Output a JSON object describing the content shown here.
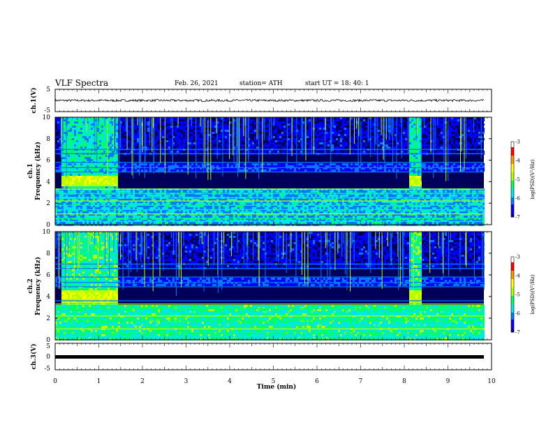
{
  "header": {
    "title": "VLF Spectra",
    "date": "Feb. 26, 2021",
    "station": "station= ATH",
    "start": "start  UT  =   18: 40: 1"
  },
  "colors": {
    "background": "#ffffff",
    "trace": "#000000",
    "colormap": [
      "#000033",
      "#00007a",
      "#0000ff",
      "#0078ff",
      "#00e6e6",
      "#00ff64",
      "#b4ff00",
      "#ffff00",
      "#ff9600",
      "#ff0000",
      "#ffffff"
    ]
  },
  "chart_data": [
    {
      "type": "line",
      "panel": "ch1-voltage",
      "ylabel": "ch.1(V)",
      "ylim": [
        -5,
        5
      ],
      "yticks": [
        "5",
        "-5"
      ],
      "xlim": [
        0,
        10
      ],
      "baseline": 0,
      "description_values": {
        "level": 0,
        "noise_amplitude": 0.5
      }
    },
    {
      "type": "heatmap",
      "panel": "ch1-spectrogram",
      "ylabel": "Frequency (kHz)",
      "channel_label": "ch.1",
      "ylim": [
        0,
        10
      ],
      "yticks": [
        "0",
        "2",
        "4",
        "6",
        "8",
        "10"
      ],
      "xlim": [
        0,
        10
      ],
      "colorbar": {
        "label": "log(PSD)(V²/Hz)",
        "range": [
          -7,
          -3
        ],
        "ticks": [
          "-3",
          "-4",
          "-5",
          "-6",
          "-7"
        ]
      },
      "active_segments": [
        [
          0.15,
          1.42
        ],
        [
          8.1,
          8.42
        ]
      ],
      "horizontal_lines_khz": [
        0.3,
        0.6,
        1.0,
        1.4,
        1.8,
        2.2,
        2.5,
        2.9,
        3.3,
        4.9,
        5.3,
        5.8,
        6.6,
        7.0
      ]
    },
    {
      "type": "heatmap",
      "panel": "ch2-spectrogram",
      "ylabel": "Frequency (kHz)",
      "channel_label": "ch.2",
      "ylim": [
        0,
        10
      ],
      "yticks": [
        "0",
        "2",
        "4",
        "6",
        "8",
        "10"
      ],
      "xlim": [
        0,
        10
      ],
      "colorbar": {
        "label": "log(PSD)(V²/Hz)",
        "range": [
          -7,
          -3
        ],
        "ticks": [
          "-3",
          "-4",
          "-5",
          "-6",
          "-7"
        ]
      },
      "active_segments": [
        [
          0.15,
          1.42
        ],
        [
          8.1,
          8.42
        ]
      ],
      "horizontal_lines_khz": [
        0.3,
        0.6,
        1.0,
        1.4,
        1.8,
        2.2,
        2.5,
        2.9,
        3.3,
        3.6,
        4.9,
        5.3,
        5.8,
        6.6,
        7.0
      ]
    },
    {
      "type": "line",
      "panel": "ch3-voltage",
      "ylabel": "ch.3(V)",
      "ylim": [
        -5,
        5
      ],
      "yticks": [
        "5",
        "0",
        "-5"
      ],
      "xlim": [
        0,
        10
      ],
      "baseline": 0,
      "xlabel": "Time (min)",
      "xticks": [
        "0",
        "1",
        "2",
        "3",
        "4",
        "5",
        "6",
        "7",
        "8",
        "9",
        "10"
      ]
    }
  ]
}
